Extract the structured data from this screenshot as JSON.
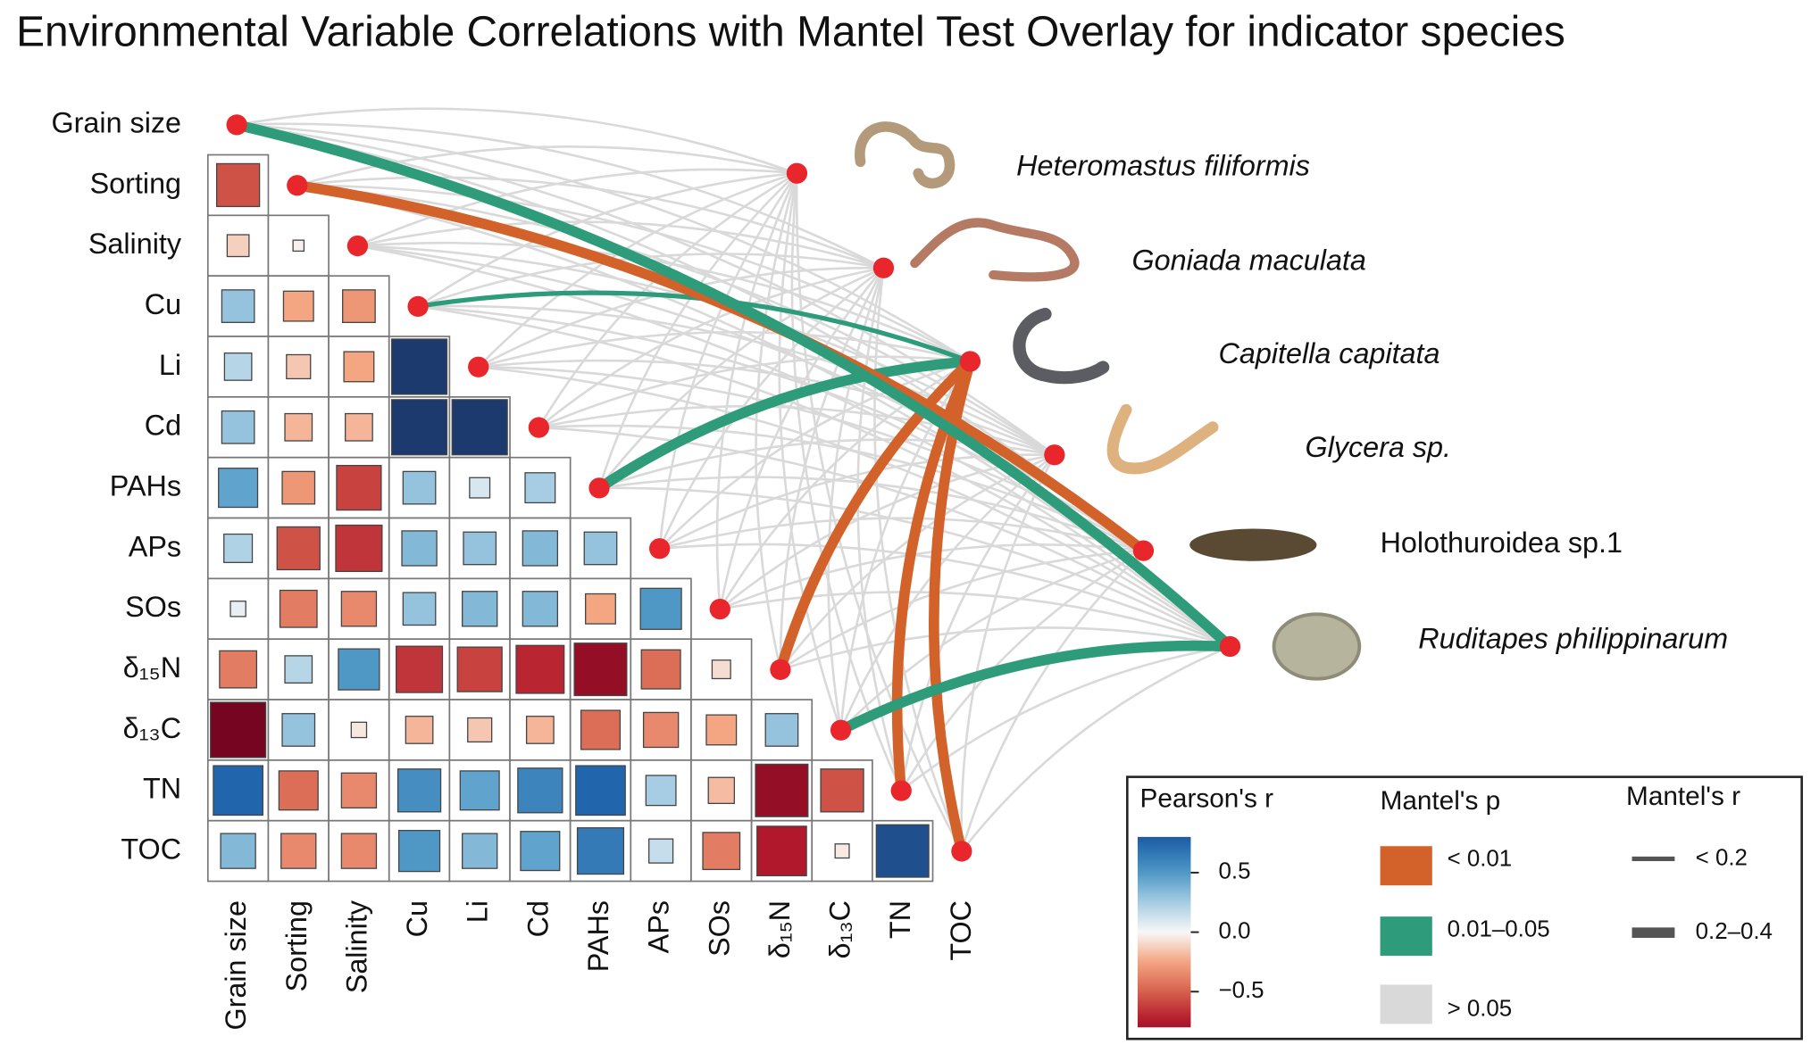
{
  "chart_data": {
    "type": "correlation-mantel",
    "title": "Environmental Variable Correlations with Mantel Test Overlay for indicator species",
    "variables": [
      "Grain size",
      "Sorting",
      "Salinity",
      "Cu",
      "Li",
      "Cd",
      "PAHs",
      "APs",
      "SOs",
      "δ₁₅N",
      "δ₁₃C",
      "TN",
      "TOC"
    ],
    "correlations": [
      [
        -0.55
      ],
      [
        -0.12,
        -0.02
      ],
      [
        0.3,
        -0.25,
        -0.3
      ],
      [
        0.2,
        -0.15,
        -0.25,
        0.95
      ],
      [
        0.3,
        -0.2,
        -0.2,
        0.95,
        0.95
      ],
      [
        0.45,
        -0.3,
        -0.6,
        0.3,
        0.1,
        0.25
      ],
      [
        0.22,
        -0.55,
        -0.65,
        0.35,
        0.3,
        0.35,
        0.3
      ],
      [
        0.05,
        -0.4,
        -0.35,
        0.3,
        0.35,
        0.35,
        -0.25,
        0.5
      ],
      [
        -0.4,
        0.2,
        0.5,
        -0.65,
        -0.6,
        -0.7,
        -0.85,
        -0.45,
        -0.08
      ],
      [
        -0.95,
        0.3,
        -0.05,
        -0.2,
        -0.15,
        -0.2,
        -0.45,
        -0.35,
        -0.25,
        0.3
      ],
      [
        0.75,
        -0.45,
        -0.35,
        0.55,
        0.45,
        0.6,
        0.75,
        0.25,
        -0.18,
        -0.85,
        -0.55
      ],
      [
        0.35,
        -0.35,
        -0.35,
        0.5,
        0.35,
        0.45,
        0.65,
        0.15,
        -0.4,
        -0.75,
        -0.04,
        0.85
      ]
    ],
    "clim": [
      -0.8,
      0.8
    ],
    "colorbar_ticks": [
      0.5,
      {
        "value": 0,
        "label": "0.0"
      },
      {
        "value": -0.5,
        "label": "−0.5"
      }
    ],
    "species": [
      "Heteromastus filiformis",
      "Goniada maculata",
      "Capitella capitata",
      "Glycera sp.",
      "Holothuroidea sp.1",
      "Ruditapes philippinarum"
    ],
    "mantel_p": [
      [
        "> 0.05",
        "> 0.05",
        "> 0.05",
        "> 0.05",
        "> 0.05",
        "> 0.05",
        "> 0.05",
        "> 0.05",
        "> 0.05",
        "> 0.05",
        "> 0.05",
        "> 0.05",
        "> 0.05"
      ],
      [
        "> 0.05",
        "> 0.05",
        "> 0.05",
        "> 0.05",
        "> 0.05",
        "> 0.05",
        "> 0.05",
        "> 0.05",
        "> 0.05",
        "> 0.05",
        "> 0.05",
        "> 0.05",
        "> 0.05"
      ],
      [
        "> 0.05",
        "> 0.05",
        "> 0.05",
        "0.01–0.05",
        "> 0.05",
        "> 0.05",
        "0.01–0.05",
        "> 0.05",
        "> 0.05",
        "< 0.01",
        "> 0.05",
        "< 0.01",
        "< 0.01"
      ],
      [
        "> 0.05",
        "> 0.05",
        "> 0.05",
        "> 0.05",
        "> 0.05",
        "> 0.05",
        "> 0.05",
        "> 0.05",
        "> 0.05",
        "> 0.05",
        "> 0.05",
        "> 0.05",
        "> 0.05"
      ],
      [
        "> 0.05",
        "< 0.01",
        "> 0.05",
        "> 0.05",
        "> 0.05",
        "> 0.05",
        "> 0.05",
        "> 0.05",
        "> 0.05",
        "> 0.05",
        "> 0.05",
        "> 0.05",
        "> 0.05"
      ],
      [
        "0.01–0.05",
        "> 0.05",
        "> 0.05",
        "> 0.05",
        "> 0.05",
        "> 0.05",
        "> 0.05",
        "> 0.05",
        "> 0.05",
        "> 0.05",
        "0.01–0.05",
        "> 0.05",
        "> 0.05"
      ]
    ],
    "mantel_r": [
      [
        "< 0.2",
        "< 0.2",
        "< 0.2",
        "< 0.2",
        "< 0.2",
        "< 0.2",
        "< 0.2",
        "< 0.2",
        "< 0.2",
        "< 0.2",
        "< 0.2",
        "< 0.2",
        "< 0.2"
      ],
      [
        "< 0.2",
        "< 0.2",
        "< 0.2",
        "< 0.2",
        "< 0.2",
        "< 0.2",
        "< 0.2",
        "< 0.2",
        "< 0.2",
        "< 0.2",
        "< 0.2",
        "< 0.2",
        "< 0.2"
      ],
      [
        "< 0.2",
        "< 0.2",
        "< 0.2",
        "< 0.2",
        "< 0.2",
        "< 0.2",
        "0.2–0.4",
        "< 0.2",
        "< 0.2",
        "0.2–0.4",
        "< 0.2",
        "0.2–0.4",
        "0.2–0.4"
      ],
      [
        "< 0.2",
        "< 0.2",
        "< 0.2",
        "< 0.2",
        "< 0.2",
        "< 0.2",
        "< 0.2",
        "< 0.2",
        "< 0.2",
        "< 0.2",
        "< 0.2",
        "< 0.2",
        "< 0.2"
      ],
      [
        "< 0.2",
        "0.2–0.4",
        "< 0.2",
        "< 0.2",
        "< 0.2",
        "< 0.2",
        "< 0.2",
        "< 0.2",
        "< 0.2",
        "< 0.2",
        "< 0.2",
        "< 0.2",
        "< 0.2"
      ],
      [
        "0.2–0.4",
        "< 0.2",
        "< 0.2",
        "< 0.2",
        "< 0.2",
        "< 0.2",
        "< 0.2",
        "< 0.2",
        "< 0.2",
        "< 0.2",
        "0.2–0.4",
        "< 0.2",
        "< 0.2"
      ]
    ],
    "legend": {
      "pearson_title": "Pearson's r",
      "mantel_p_title": "Mantel's p",
      "mantel_r_title": "Mantel's r",
      "p_classes": [
        {
          "label": "< 0.01",
          "color": "#d2622a"
        },
        {
          "label": "0.01–0.05",
          "color": "#2e9b7a"
        },
        {
          "label": "> 0.05",
          "color": "#d9d9da"
        }
      ],
      "r_classes": [
        "< 0.2",
        "0.2–0.4"
      ]
    },
    "node_color": "#e8262b"
  }
}
